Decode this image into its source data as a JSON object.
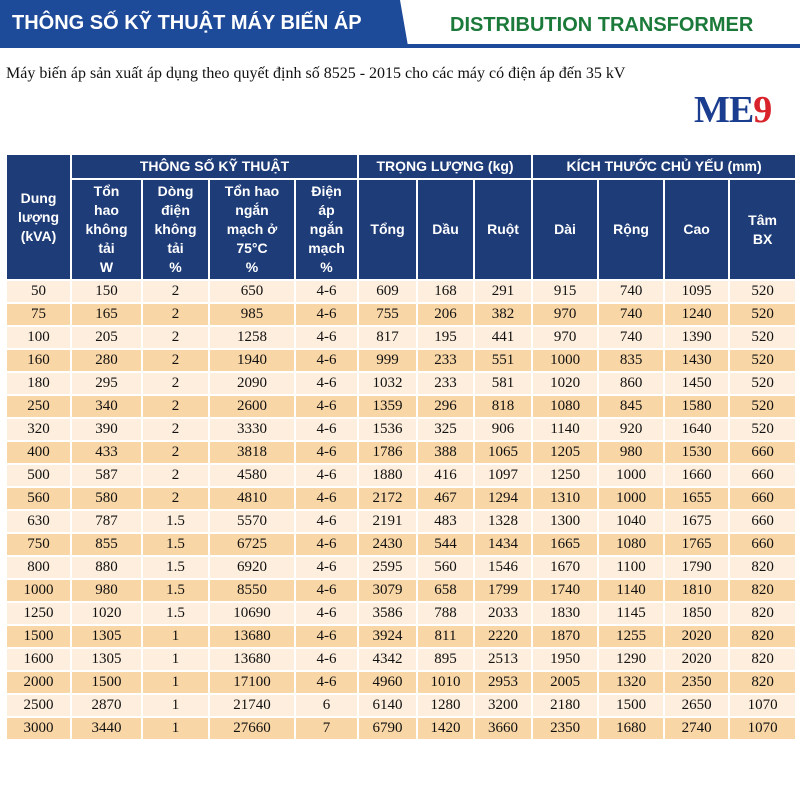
{
  "header": {
    "title": "THÔNG SỐ KỸ THUẬT MÁY BIẾN ÁP",
    "subtitle": "DISTRIBUTION TRANSFORMER"
  },
  "description": "Máy biến áp sản xuất áp dụng theo quyết định số 8525 - 2015 cho các máy có điện áp đến 35 kV",
  "logo": {
    "left": "ME",
    "right": "9"
  },
  "table": {
    "group_headers": [
      "THÔNG SỐ KỸ THUẬT",
      "TRỌNG LƯỢNG (kg)",
      "KÍCH THƯỚC CHỦ YẾU (mm)"
    ],
    "columns": [
      "Dung\nlượng\n(kVA)",
      "Tổn\nhao\nkhông\ntải\nW",
      "Dòng\nđiện\nkhông\ntải\n%",
      "Tổn hao\nngắn\nmạch ở\n75°C\n%",
      "Điện\náp\nngắn\nmạch\n%",
      "Tổng",
      "Dầu",
      "Ruột",
      "Dài",
      "Rộng",
      "Cao",
      "Tâm\nBX"
    ],
    "rows": [
      [
        "50",
        "150",
        "2",
        "650",
        "4-6",
        "609",
        "168",
        "291",
        "915",
        "740",
        "1095",
        "520"
      ],
      [
        "75",
        "165",
        "2",
        "985",
        "4-6",
        "755",
        "206",
        "382",
        "970",
        "740",
        "1240",
        "520"
      ],
      [
        "100",
        "205",
        "2",
        "1258",
        "4-6",
        "817",
        "195",
        "441",
        "970",
        "740",
        "1390",
        "520"
      ],
      [
        "160",
        "280",
        "2",
        "1940",
        "4-6",
        "999",
        "233",
        "551",
        "1000",
        "835",
        "1430",
        "520"
      ],
      [
        "180",
        "295",
        "2",
        "2090",
        "4-6",
        "1032",
        "233",
        "581",
        "1020",
        "860",
        "1450",
        "520"
      ],
      [
        "250",
        "340",
        "2",
        "2600",
        "4-6",
        "1359",
        "296",
        "818",
        "1080",
        "845",
        "1580",
        "520"
      ],
      [
        "320",
        "390",
        "2",
        "3330",
        "4-6",
        "1536",
        "325",
        "906",
        "1140",
        "920",
        "1640",
        "520"
      ],
      [
        "400",
        "433",
        "2",
        "3818",
        "4-6",
        "1786",
        "388",
        "1065",
        "1205",
        "980",
        "1530",
        "660"
      ],
      [
        "500",
        "587",
        "2",
        "4580",
        "4-6",
        "1880",
        "416",
        "1097",
        "1250",
        "1000",
        "1660",
        "660"
      ],
      [
        "560",
        "580",
        "2",
        "4810",
        "4-6",
        "2172",
        "467",
        "1294",
        "1310",
        "1000",
        "1655",
        "660"
      ],
      [
        "630",
        "787",
        "1.5",
        "5570",
        "4-6",
        "2191",
        "483",
        "1328",
        "1300",
        "1040",
        "1675",
        "660"
      ],
      [
        "750",
        "855",
        "1.5",
        "6725",
        "4-6",
        "2430",
        "544",
        "1434",
        "1665",
        "1080",
        "1765",
        "660"
      ],
      [
        "800",
        "880",
        "1.5",
        "6920",
        "4-6",
        "2595",
        "560",
        "1546",
        "1670",
        "1100",
        "1790",
        "820"
      ],
      [
        "1000",
        "980",
        "1.5",
        "8550",
        "4-6",
        "3079",
        "658",
        "1799",
        "1740",
        "1140",
        "1810",
        "820"
      ],
      [
        "1250",
        "1020",
        "1.5",
        "10690",
        "4-6",
        "3586",
        "788",
        "2033",
        "1830",
        "1145",
        "1850",
        "820"
      ],
      [
        "1500",
        "1305",
        "1",
        "13680",
        "4-6",
        "3924",
        "811",
        "2220",
        "1870",
        "1255",
        "2020",
        "820"
      ],
      [
        "1600",
        "1305",
        "1",
        "13680",
        "4-6",
        "4342",
        "895",
        "2513",
        "1950",
        "1290",
        "2020",
        "820"
      ],
      [
        "2000",
        "1500",
        "1",
        "17100",
        "4-6",
        "4960",
        "1010",
        "2953",
        "2005",
        "1320",
        "2350",
        "820"
      ],
      [
        "2500",
        "2870",
        "1",
        "21740",
        "6",
        "6140",
        "1280",
        "3200",
        "2180",
        "1500",
        "2650",
        "1070"
      ],
      [
        "3000",
        "3440",
        "1",
        "27660",
        "7",
        "6790",
        "1420",
        "3660",
        "2350",
        "1680",
        "2740",
        "1070"
      ]
    ]
  }
}
